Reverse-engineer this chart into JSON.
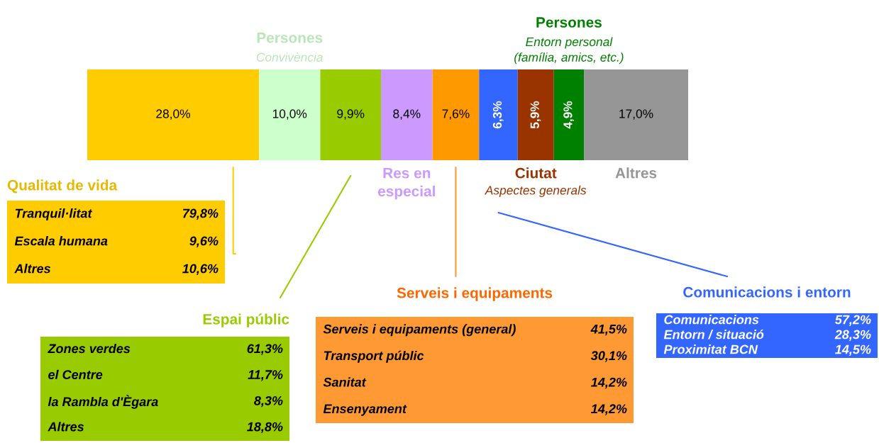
{
  "chart_data": [
    {
      "type": "bar",
      "orientation": "horizontal",
      "stacked": true,
      "categories": [
        null
      ],
      "xlim": [
        0,
        98
      ],
      "tick_labels": false,
      "legend": false,
      "series": [
        {
          "color": "#ffcc00",
          "values": [
            28.0
          ],
          "value_labels": [
            "28,0%"
          ]
        },
        {
          "name": "Persones\nConvivència",
          "color": "#ccffcc",
          "values": [
            10.0
          ],
          "value_labels": [
            "10,0%"
          ]
        },
        {
          "color": "#99cc00",
          "values": [
            9.9
          ],
          "value_labels": [
            "9,9%"
          ]
        },
        {
          "name": "Res en\nespecial",
          "color": "#cc99ff",
          "values": [
            8.4
          ],
          "value_labels": [
            "8,4%"
          ]
        },
        {
          "color": "#ff9900",
          "values": [
            7.6
          ],
          "value_labels": [
            "7,6%"
          ]
        },
        {
          "color": "#3366ff",
          "values": [
            6.3
          ],
          "value_labels": [
            "6,3%"
          ]
        },
        {
          "name": "Ciutat\nAspectes generals",
          "color": "#993300",
          "values": [
            5.9
          ],
          "value_labels": [
            "5,9%"
          ]
        },
        {
          "name": "Persones\nEntorn personal\n(família, amics, etc.)",
          "color": "#008000",
          "values": [
            4.9
          ],
          "value_labels": [
            "4,9%"
          ]
        },
        {
          "name": "Altres",
          "color": "#969696",
          "values": [
            17.0
          ],
          "value_labels": [
            "17,0%"
          ]
        }
      ]
    },
    {
      "type": "other",
      "title": "Qualitat de vida",
      "color": "#ffcc00",
      "categories": [
        "Tranquil·litat",
        "Escala humana",
        "Altres"
      ],
      "value_labels": [
        "79,8%",
        "9,6%",
        "10,6%"
      ]
    },
    {
      "type": "other",
      "title": "Espai públic",
      "color": "#99cc00",
      "categories": [
        "Zones verdes",
        "el Centre",
        "la Rambla d'Ègara",
        "Altres"
      ],
      "value_labels": [
        "61,3%",
        "11,7%",
        "8,3%",
        "18,8%"
      ]
    },
    {
      "type": "other",
      "title": "Serveis i equipaments",
      "color": "#ff9933",
      "categories": [
        "Serveis i equipaments (general)",
        "Transport públic",
        "Sanitat",
        "Ensenyament"
      ],
      "value_labels": [
        "41,5%",
        "30,1%",
        "14,2%",
        "14,2%"
      ]
    },
    {
      "type": "other",
      "title": "Comunicacions i entorn",
      "color": "#3366ff",
      "categories": [
        "Comunicacions",
        "Entorn / situació",
        "Proximitat BCN"
      ],
      "value_labels": [
        "57,2%",
        "28,3%",
        "14,5%"
      ]
    }
  ]
}
